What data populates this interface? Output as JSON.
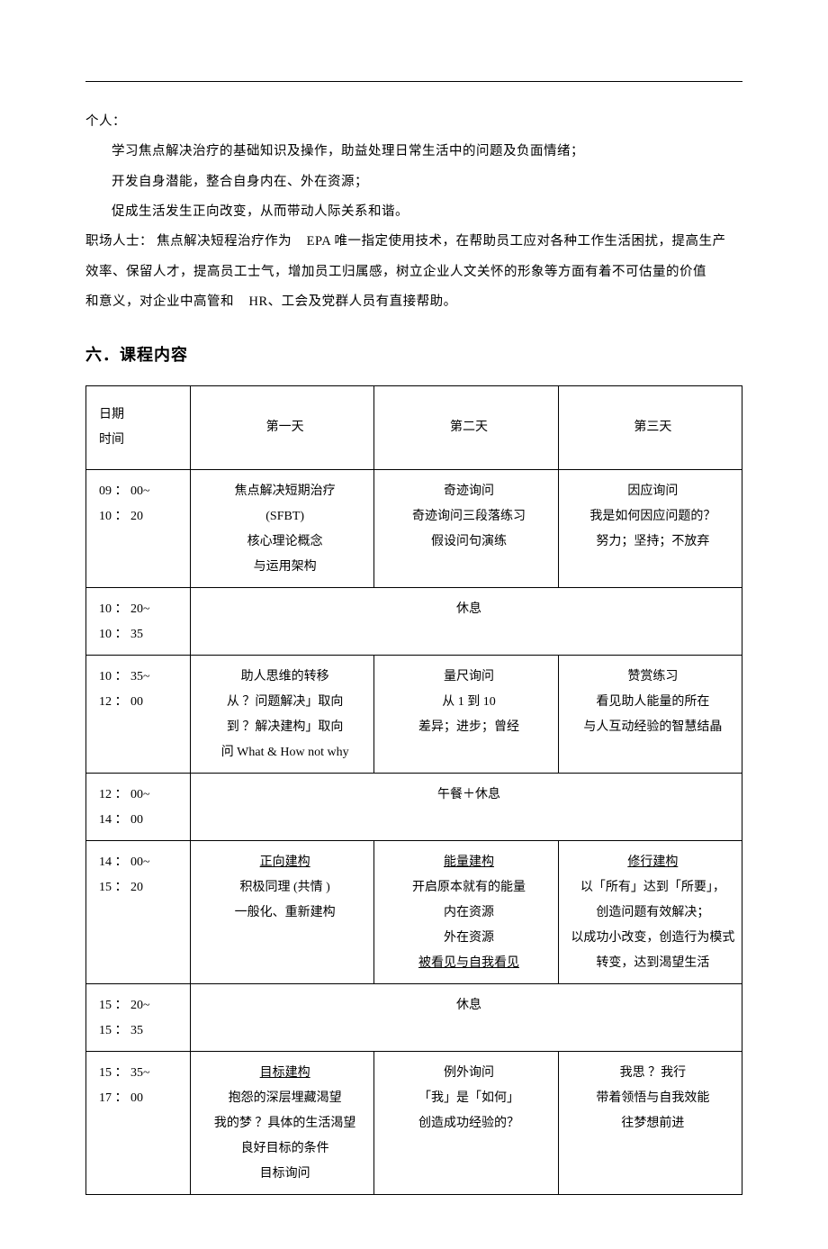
{
  "intro": {
    "p1": "个人：",
    "p2": "学习焦点解决治疗的基础知识及操作，助益处理日常生活中的问题及负面情绪；",
    "p3": "开发自身潜能，整合自身内在、外在资源；",
    "p4": "促成生活发生正向改变，从而带动人际关系和谐。",
    "p5a": "职场人士：  焦点解决短程治疗作为",
    "p5b": "EPA 唯一指定使用技术，在帮助员工应对各种工作生活困扰，提高生产",
    "p6": "效率、保留人才，提高员工士气，增加员工归属感，树立企业人文关怀的形象等方面有着不可估量的价值",
    "p7a": "和意义，对企业中高管和",
    "p7b": "HR、工会及党群人员有直接帮助。"
  },
  "section_title": "六．课程内容",
  "table": {
    "head": {
      "time": "日期\n时间",
      "d1": "第一天",
      "d2": "第二天",
      "d3": "第三天"
    },
    "rows": [
      {
        "time": [
          "09 ： 00~",
          "10 ： 20"
        ],
        "d1": [
          "焦点解决短期治疗",
          "(SFBT)",
          "核心理论概念",
          "与运用架构"
        ],
        "d2": [
          "奇迹询问",
          "奇迹询问三段落练习",
          "假设问句演练"
        ],
        "d3": [
          "因应询问",
          "我是如何因应问题的？",
          "努力；坚持；不放弃"
        ]
      },
      {
        "time": [
          "10 ： 20~",
          "10 ： 35"
        ],
        "merged": "休息"
      },
      {
        "time": [
          "10 ： 35~",
          "12 ： 00"
        ],
        "d1": [
          "助人思维的转移",
          "从 ？问题解决」取向",
          "到 ？解决建构」取向",
          "问 What & How not why"
        ],
        "d2": [
          "量尺询问",
          "从 1 到 10",
          "差异；进步；曾经"
        ],
        "d3": [
          "赞赏练习",
          "看见助人能量的所在",
          "与人互动经验的智慧结晶"
        ]
      },
      {
        "time": [
          "12 ： 00~",
          "14 ： 00"
        ],
        "merged": "午餐＋休息"
      },
      {
        "time": [
          "14 ： 00~",
          "15 ： 20"
        ],
        "d1": [
          {
            "t": "正向建构",
            "u": true
          },
          "积极同理 (共情 )",
          "一般化、重新建构"
        ],
        "d2": [
          {
            "t": "能量建构",
            "u": true
          },
          "开启原本就有的能量",
          "内在资源",
          "外在资源",
          {
            "t": "被看见与自我看见",
            "u": true
          }
        ],
        "d3": [
          {
            "t": "修行建构",
            "u": true
          },
          "以「所有」达到「所要」，",
          "创造问题有效解决；",
          "以成功小改变，创造行为模式",
          "转变，达到渴望生活"
        ]
      },
      {
        "time": [
          "15 ： 20~",
          "15 ： 35"
        ],
        "merged": "休息"
      },
      {
        "time": [
          "15 ： 35~",
          "17 ： 00"
        ],
        "d1": [
          {
            "t": "目标建构",
            "u": true
          },
          "抱怨的深层埋藏渴望",
          "我的梦  ？具体的生活渴望",
          "良好目标的条件",
          "目标询问"
        ],
        "d2": [
          "例外询问",
          "「我」是「如何」",
          "创造成功经验的？"
        ],
        "d3": [
          "我思  ？我行",
          "带着领悟与自我效能",
          "往梦想前进"
        ]
      }
    ]
  }
}
